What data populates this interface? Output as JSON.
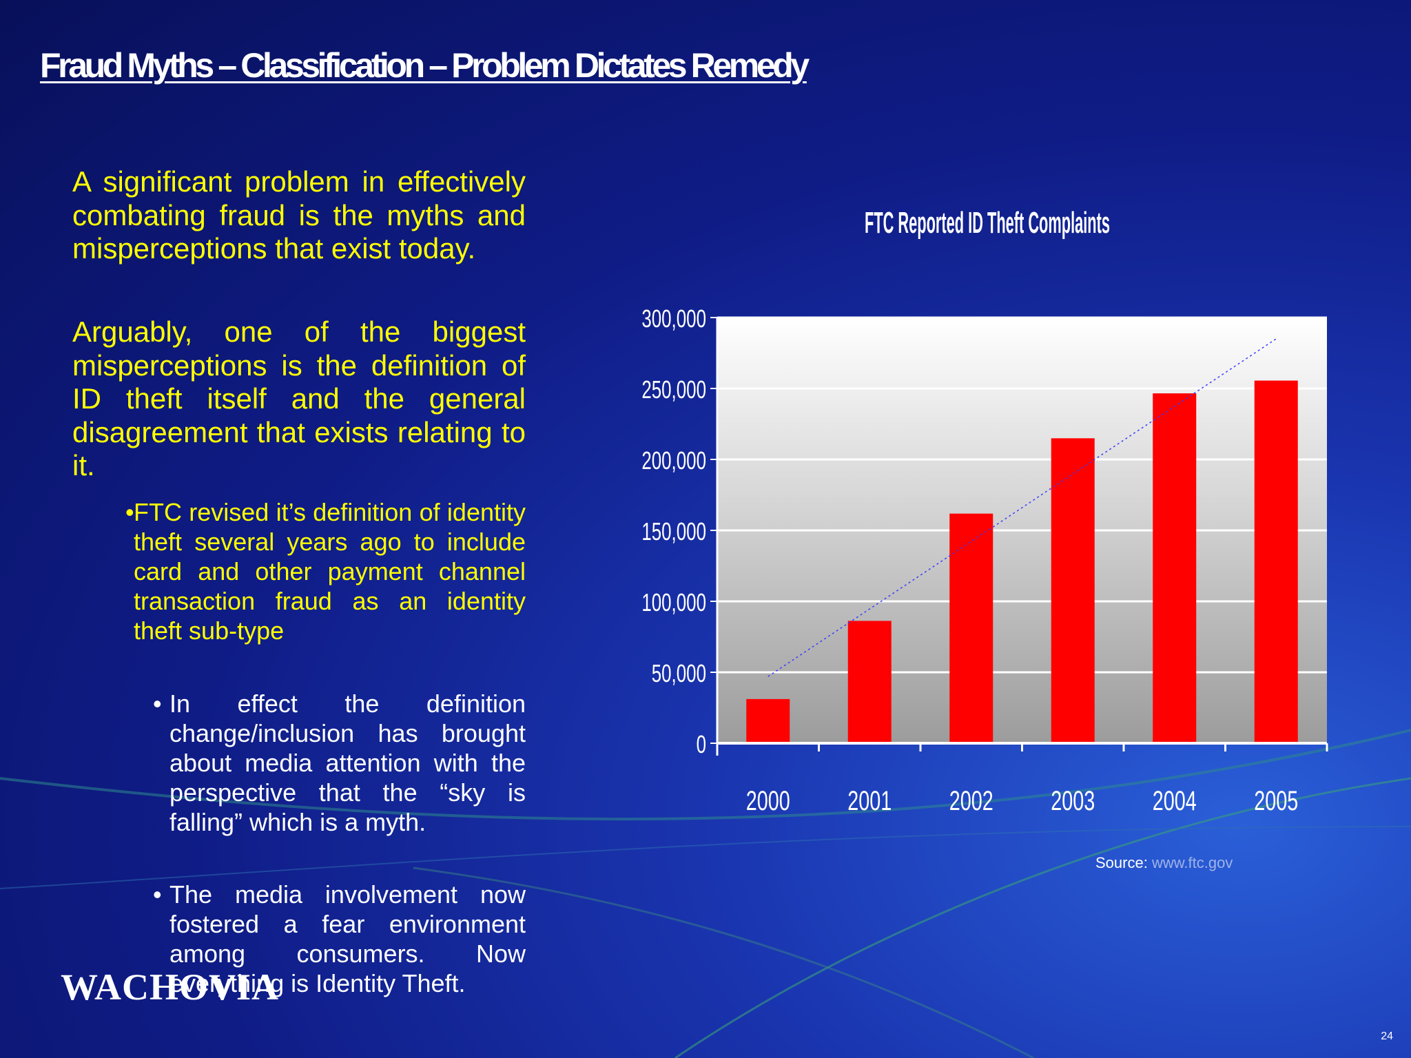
{
  "slide": {
    "title": "Fraud Myths – Classification – Problem Dictates Remedy",
    "page_number": "24",
    "logo_text": "Wachovia"
  },
  "body": {
    "para1": "A significant problem in effectively combating fraud is the myths and misperceptions that exist today.",
    "para2": "Arguably, one of the biggest misperceptions is the definition of ID theft itself and the general disagreement that exists relating to it.",
    "bullet1": {
      "marker": "•",
      "text": "FTC revised it’s definition of identity theft several years ago to include card and other payment channel transaction fraud as an identity theft sub-type"
    },
    "subbullets": [
      {
        "marker": "•",
        "text": "In effect the definition change/inclusion has brought about media attention with the perspective that the “sky is falling” which is a myth."
      },
      {
        "marker": "•",
        "text": "The media involvement now fostered a fear environment among consumers. Now everything is Identity Theft."
      }
    ]
  },
  "source": {
    "label": "Source:",
    "url": "www.ftc.gov"
  },
  "colors": {
    "bar": "#ff0000",
    "body_text": "#ffff00",
    "trendline": "#3a3aff"
  },
  "chart_data": {
    "type": "bar",
    "title": "FTC Reported ID Theft Complaints",
    "categories": [
      "2000",
      "2001",
      "2002",
      "2003",
      "2004",
      "2005"
    ],
    "values": [
      31117,
      86212,
      161819,
      214905,
      246570,
      255565
    ],
    "ylim": [
      0,
      300000
    ],
    "yticks": [
      "0",
      "50,000",
      "100,000",
      "150,000",
      "200,000",
      "250,000",
      "300,000"
    ],
    "ytick_values": [
      0,
      50000,
      100000,
      150000,
      200000,
      250000,
      300000
    ],
    "trendline": {
      "style": "dotted",
      "from": [
        "2000",
        47000
      ],
      "to": [
        "2005",
        285000
      ]
    },
    "grid": true,
    "legend": "none",
    "xlabel": "",
    "ylabel": ""
  }
}
